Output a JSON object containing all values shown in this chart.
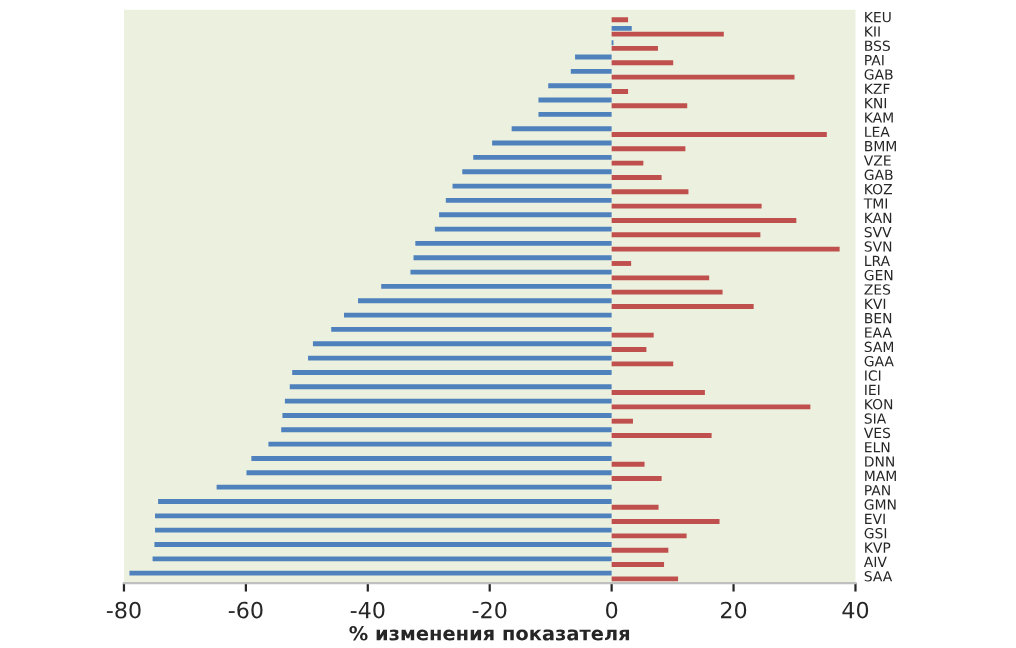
{
  "chart_data": {
    "type": "bar",
    "orientation": "horizontal",
    "xlabel": "% изменения показателя",
    "categories": [
      "KEU",
      "KII",
      "BSS",
      "PAI",
      "GAB",
      "KZF",
      "KNI",
      "KAM",
      "LEA",
      "BMM",
      "VZE",
      "GAB",
      "KOZ",
      "TMI",
      "KAN",
      "SVV",
      "SVN",
      "LRA",
      "GEN",
      "ZES",
      "KVI",
      "BEN",
      "EAA",
      "SAM",
      "GAA",
      "ICI",
      "IEI",
      "KON",
      "SIA",
      "VES",
      "ELN",
      "DNN",
      "MAM",
      "PAN",
      "GMN",
      "EVI",
      "GSI",
      "KVP",
      "AIV",
      "SAA"
    ],
    "series": [
      {
        "color": "#4f81bd",
        "values": [
          null,
          3.3,
          0.3,
          -6,
          -6.7,
          -10.4,
          -12,
          -12,
          -16.4,
          -19.6,
          -22.7,
          -24.5,
          -26.1,
          -27.2,
          -28.3,
          -29,
          -32.2,
          -32.5,
          -33,
          -37.8,
          -41.6,
          -43.9,
          -46,
          -49,
          -49.8,
          -52.4,
          -52.8,
          -53.6,
          -54,
          -54.2,
          -56.3,
          -59.1,
          -59.9,
          -64.8,
          -74.4,
          -74.9,
          -74.9,
          -75,
          -75.3,
          -79.1
        ]
      },
      {
        "color": "#c0504d",
        "values": [
          2.7,
          18.4,
          7.6,
          10.1,
          30,
          2.7,
          12.4,
          null,
          35.3,
          12.1,
          5.2,
          8.2,
          12.6,
          24.6,
          30.3,
          24.4,
          37.4,
          3.2,
          16,
          18.2,
          23.3,
          null,
          6.9,
          5.7,
          10.1,
          null,
          15.3,
          32.6,
          3.5,
          16.4,
          null,
          5.4,
          8.2,
          null,
          7.7,
          17.7,
          12.3,
          9.3,
          8.6,
          10.9
        ]
      }
    ],
    "xlim": [
      -80,
      40
    ],
    "xticks": [
      -80,
      -60,
      -40,
      -20,
      0,
      20,
      40
    ],
    "grid": false
  }
}
